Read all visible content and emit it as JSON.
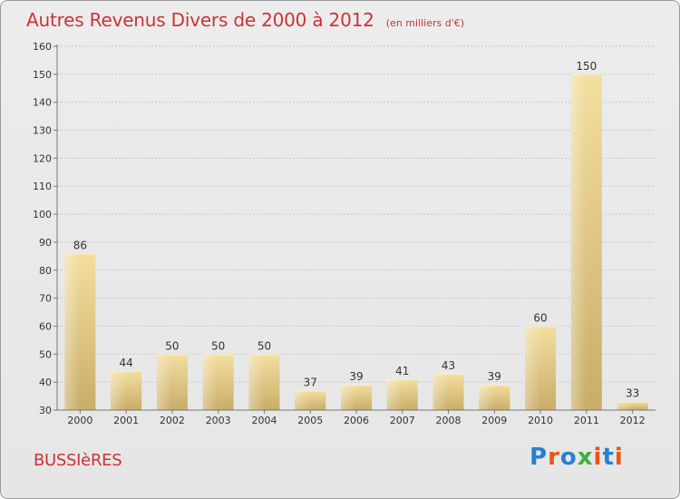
{
  "header": {
    "title": "Autres Revenus Divers de 2000 à 2012",
    "subtitle": "(en milliers d'€)"
  },
  "footer": {
    "commune": "BUSSIèRES",
    "logo": "Proxiti",
    "logo_colors": [
      "#2a7fd0",
      "#e8541c",
      "#2a7fd0",
      "#3fae3f",
      "#e8541c",
      "#2a7fd0",
      "#e8541c"
    ]
  },
  "colors": {
    "title": "#cc3333",
    "bar_light": "#f3dfa0",
    "bar_dark": "#c9ad68",
    "grid": "#c8c8c8",
    "axis_text": "#333333"
  },
  "chart_data": {
    "type": "bar",
    "title": "Autres Revenus Divers de 2000 à 2012",
    "subtitle": "(en milliers d'€)",
    "xlabel": "",
    "ylabel": "",
    "categories": [
      "2000",
      "2001",
      "2002",
      "2003",
      "2004",
      "2005",
      "2006",
      "2007",
      "2008",
      "2009",
      "2010",
      "2011",
      "2012"
    ],
    "values": [
      86,
      44,
      50,
      50,
      50,
      37,
      39,
      41,
      43,
      39,
      60,
      150,
      33
    ],
    "ylim": [
      30,
      160
    ],
    "yticks": [
      30,
      40,
      50,
      60,
      70,
      80,
      90,
      100,
      110,
      120,
      130,
      140,
      150,
      160
    ],
    "grid": true,
    "legend": "none"
  }
}
